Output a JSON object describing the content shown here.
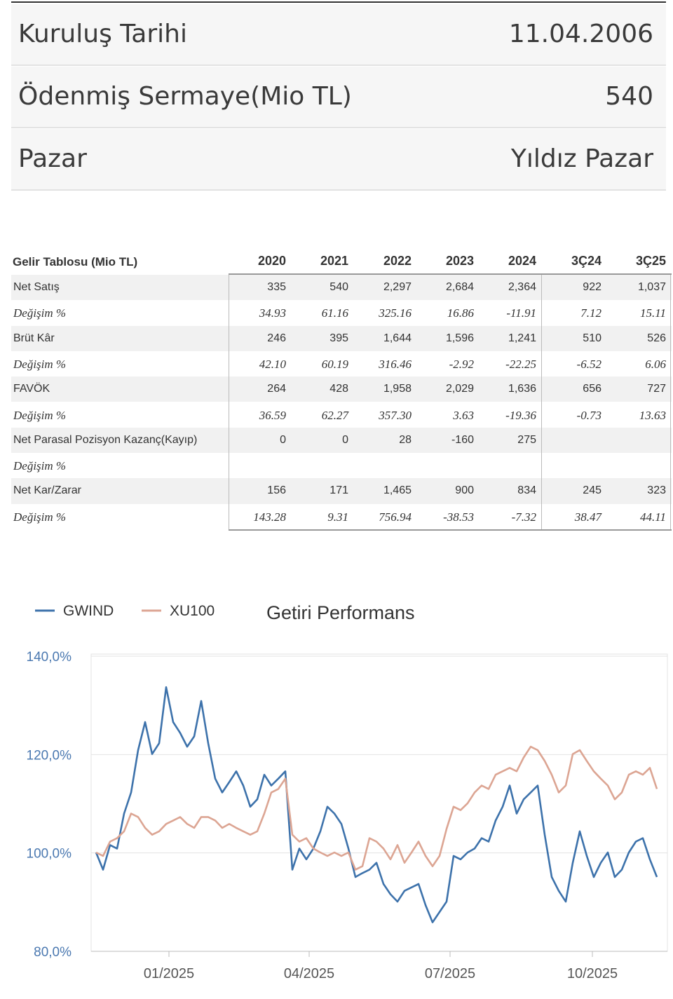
{
  "info": [
    {
      "label": "Kuruluş Tarihi",
      "value": "11.04.2006"
    },
    {
      "label": "Ödenmiş Sermaye(Mio TL)",
      "value": "540"
    },
    {
      "label": "Pazar",
      "value": "Yıldız Pazar"
    }
  ],
  "table": {
    "title": "Gelir Tablosu (Mio TL)",
    "columns": [
      "2020",
      "2021",
      "2022",
      "2023",
      "2024",
      "3Ç24",
      "3Ç25"
    ],
    "rows": [
      {
        "label": "Net Satış",
        "cells": [
          "335",
          "540",
          "2,297",
          "2,684",
          "2,364",
          "922",
          "1,037"
        ]
      },
      {
        "label": "Değişim %",
        "cells": [
          "34.93",
          "61.16",
          "325.16",
          "16.86",
          "-11.91",
          "7.12",
          "15.11"
        ]
      },
      {
        "label": "Brüt Kâr",
        "cells": [
          "246",
          "395",
          "1,644",
          "1,596",
          "1,241",
          "510",
          "526"
        ]
      },
      {
        "label": "Değişim %",
        "cells": [
          "42.10",
          "60.19",
          "316.46",
          "-2.92",
          "-22.25",
          "-6.52",
          "6.06"
        ]
      },
      {
        "label": "FAVÖK",
        "cells": [
          "264",
          "428",
          "1,958",
          "2,029",
          "1,636",
          "656",
          "727"
        ]
      },
      {
        "label": "Değişim %",
        "cells": [
          "36.59",
          "62.27",
          "357.30",
          "3.63",
          "-19.36",
          "-0.73",
          "13.63"
        ]
      },
      {
        "label": "Net Parasal Pozisyon Kazanç(Kayıp)",
        "cells": [
          "0",
          "0",
          "28",
          "-160",
          "275",
          null,
          null
        ]
      },
      {
        "label": "Değişim %",
        "cells": [
          null,
          null,
          null,
          null,
          null,
          null,
          null
        ]
      },
      {
        "label": "Net Kar/Zarar",
        "cells": [
          "156",
          "171",
          "1,465",
          "900",
          "834",
          "245",
          "323"
        ]
      },
      {
        "label": "Değişim %",
        "cells": [
          "143.28",
          "9.31",
          "756.94",
          "-38.53",
          "-7.32",
          "38.47",
          "44.11"
        ]
      }
    ]
  },
  "chart_data": {
    "type": "line",
    "title": "Getiri Performans",
    "xlim": [
      0,
      80
    ],
    "xticks": [
      {
        "value": 10.4,
        "label": "01/2025"
      },
      {
        "value": 30.4,
        "label": "04/2025"
      },
      {
        "value": 50.5,
        "label": "07/2025"
      },
      {
        "value": 70.8,
        "label": "10/2025"
      }
    ],
    "ylim": [
      80,
      140
    ],
    "yticks": [
      {
        "value": 80,
        "label": "80,0%"
      },
      {
        "value": 100,
        "label": "100,0%"
      },
      {
        "value": 120,
        "label": "120,0%"
      },
      {
        "value": 140,
        "label": "140,0%"
      }
    ],
    "grid": true,
    "legend": "top-left",
    "series": [
      {
        "name": "GWIND",
        "color": "#3d72ab",
        "values": [
          100.1,
          96.6,
          101.6,
          100.9,
          108,
          112.3,
          120.9,
          126.6,
          120.1,
          122.3,
          133.7,
          126.6,
          124.4,
          121.6,
          123.7,
          130.9,
          122.3,
          115.1,
          112.3,
          114.4,
          116.6,
          113.7,
          109.4,
          110.9,
          115.9,
          113.7,
          115.1,
          116.6,
          96.6,
          100.9,
          98.7,
          100.9,
          104.4,
          109.4,
          108,
          105.9,
          100.9,
          95.1,
          95.9,
          96.6,
          98,
          93.7,
          91.6,
          90.1,
          92.3,
          93,
          93.7,
          89.4,
          85.9,
          88,
          90.1,
          99.4,
          98.7,
          100.1,
          100.9,
          103,
          102.3,
          106.6,
          109.4,
          113.7,
          108,
          110.9,
          112.3,
          113.7,
          103.7,
          95.1,
          92.3,
          90.1,
          98,
          104.4,
          99.4,
          95.1,
          98,
          100.1,
          95.1,
          96.6,
          100.1,
          102.3,
          103,
          98.7,
          95.1
        ]
      },
      {
        "name": "XU100",
        "color": "#dca593",
        "values": [
          100.1,
          99.4,
          102.3,
          103,
          104.4,
          108,
          107.3,
          105.1,
          103.7,
          104.4,
          105.9,
          106.6,
          107.3,
          105.9,
          105.1,
          107.3,
          107.3,
          106.6,
          105.1,
          105.9,
          105.1,
          104.4,
          103.7,
          104.4,
          108,
          112.3,
          113,
          115.1,
          103.7,
          102.3,
          103,
          100.9,
          100.1,
          99.4,
          100.1,
          99.4,
          100.1,
          96.6,
          97.3,
          103,
          102.3,
          100.9,
          98.7,
          101.6,
          98,
          100.1,
          102.3,
          99.4,
          97.3,
          99.4,
          104.9,
          109.4,
          108.7,
          110.1,
          112.3,
          113.7,
          113,
          115.9,
          116.6,
          117.3,
          116.6,
          119.4,
          121.6,
          120.9,
          118.7,
          115.9,
          112.3,
          113.7,
          120.1,
          120.9,
          118.7,
          116.6,
          115.1,
          113.7,
          110.9,
          112.3,
          115.9,
          116.6,
          115.9,
          117.3,
          113
        ]
      }
    ]
  }
}
